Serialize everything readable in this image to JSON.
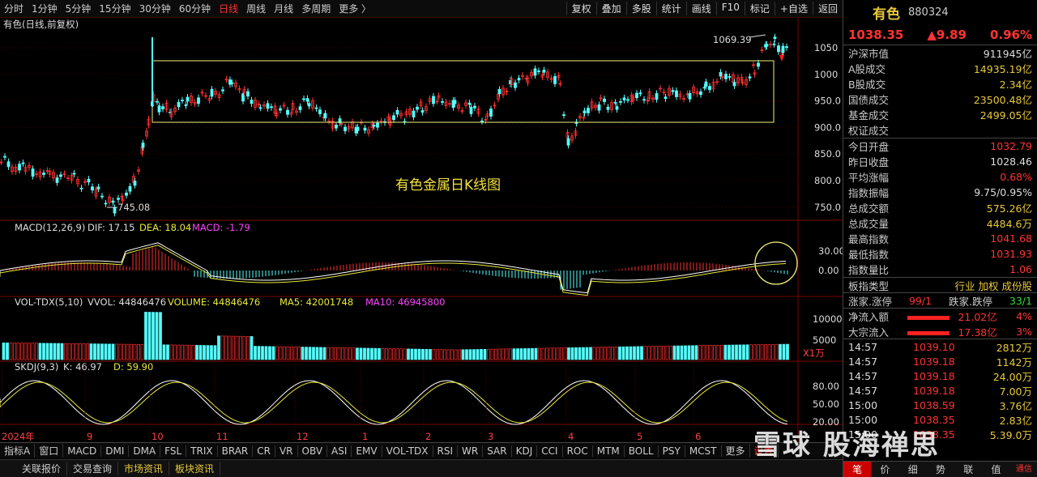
{
  "toolbar": {
    "periods": [
      "分时",
      "1分钟",
      "5分钟",
      "15分钟",
      "30分钟",
      "60分钟",
      "日线",
      "周线",
      "月线",
      "多周期",
      "更多 〉"
    ],
    "active_period": "日线",
    "tools": [
      "复权",
      "叠加",
      "多股",
      "统计",
      "画线",
      "F10",
      "标记",
      "+自选",
      "返回"
    ]
  },
  "main_chart": {
    "title": "有色(日线,前复权)",
    "annotation": "有色金属日K线图",
    "high_label": "1069.39",
    "low_label": "745.08",
    "y_ticks": [
      "1050",
      "1000",
      "950.0",
      "900.0",
      "850.0",
      "800.0",
      "750.0"
    ]
  },
  "macd": {
    "label": "MACD(12,26,9)",
    "dif": "DIF: 17.15",
    "dea": "DEA: 18.04",
    "macd": "MACD: -1.79",
    "y_ticks": [
      "30.00",
      "0.00"
    ]
  },
  "vol": {
    "label": "VOL-TDX(5,10)",
    "vvol": "VVOL: 44846476",
    "volume": "VOLUME: 44846476",
    "ma5": "MA5: 42001748",
    "ma10": "MA10: 46945800",
    "y_ticks": [
      "10000",
      "5000"
    ],
    "unit": "X1万"
  },
  "skdj": {
    "label": "SKDJ(9,3)",
    "k": "K: 46.97",
    "d": "D: 59.90",
    "y_ticks": [
      "80.00",
      "50.00",
      "20.00"
    ]
  },
  "x_axis": [
    "2024年",
    "9",
    "10",
    "11",
    "12",
    "1",
    "2",
    "3",
    "4",
    "5",
    "6"
  ],
  "indicator_tabs": [
    "指标A",
    "窗口",
    "MACD",
    "DMI",
    "DMA",
    "FSL",
    "TRIX",
    "BRAR",
    "CR",
    "VR",
    "OBV",
    "ASI",
    "EMV",
    "VOL-TDX",
    "RSI",
    "WR",
    "SAR",
    "KDJ",
    "CCI",
    "ROC",
    "MTM",
    "BOLL",
    "PSY",
    "MCST",
    "更多",
    "设置"
  ],
  "footer_tabs": [
    "关联报价",
    "交易查询",
    "市场资讯",
    "板块资讯"
  ],
  "panel": {
    "name": "有色",
    "code": "880324",
    "price": "1038.35",
    "change": "▲9.89",
    "pct": "0.96%",
    "market": [
      {
        "label": "沪深市值",
        "value": "911945亿"
      },
      {
        "label": "A股成交",
        "value": "14935.19亿"
      },
      {
        "label": "B股成交",
        "value": "2.34亿"
      },
      {
        "label": "国债成交",
        "value": "23500.48亿"
      },
      {
        "label": "基金成交",
        "value": "2499.05亿"
      },
      {
        "label": "权证成交",
        "value": ""
      }
    ],
    "stats": [
      {
        "label": "今日开盘",
        "value": "1032.79",
        "color": "red"
      },
      {
        "label": "昨日收盘",
        "value": "1028.46",
        "color": "wht"
      },
      {
        "label": "平均涨幅",
        "value": "0.68%",
        "color": "red"
      },
      {
        "label": "指数振幅",
        "value": "9.75/0.95%",
        "color": "wht"
      },
      {
        "label": "总成交额",
        "value": "575.26亿",
        "color": "yel"
      },
      {
        "label": "总成交量",
        "value": "4484.6万",
        "color": "yel"
      },
      {
        "label": "最高指数",
        "value": "1041.68",
        "color": "red"
      },
      {
        "label": "最低指数",
        "value": "1031.93",
        "color": "red"
      },
      {
        "label": "指数量比",
        "value": "1.06",
        "color": "red"
      }
    ],
    "board_type_label": "板指类型",
    "board_type": "行业 加权 成份股",
    "up_label": "涨家.涨停",
    "up_value": "99/1",
    "down_label": "跌家.跌停",
    "down_value": "33/1",
    "net_in_label": "净流入额",
    "net_in": "21.02亿",
    "net_in_pct": "4%",
    "block_in_label": "大宗流入",
    "block_in": "17.38亿",
    "block_in_pct": "3%",
    "trades": [
      {
        "t": "14:57",
        "p": "1039.10",
        "v": "2812万"
      },
      {
        "t": "14:57",
        "p": "1039.18",
        "v": "1142万"
      },
      {
        "t": "14:57",
        "p": "1039.18",
        "v": "24.00万"
      },
      {
        "t": "14:57",
        "p": "1039.18",
        "v": "7.00万"
      },
      {
        "t": "15:00",
        "p": "1038.59",
        "v": "3.76亿"
      },
      {
        "t": "15:00",
        "p": "1038.35",
        "v": "2.83亿"
      },
      {
        "t": "15:00",
        "p": "1038.35",
        "v": "5.39.0万"
      }
    ],
    "tabs": [
      "笔",
      "价",
      "细",
      "势",
      "联",
      "值",
      "通信"
    ]
  },
  "watermark": "雪球  股海禅思"
}
